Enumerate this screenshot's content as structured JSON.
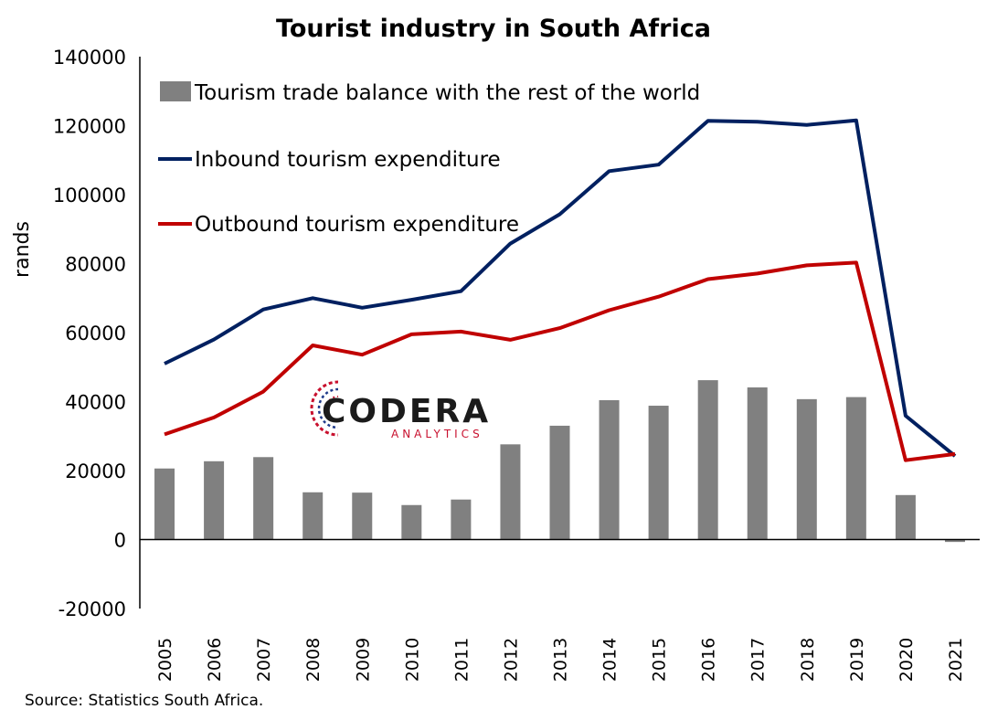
{
  "chart_data": {
    "type": "bar",
    "title": "Tourist industry in South Africa",
    "ylabel": "rands",
    "xlabel": "",
    "ylim": [
      -20000,
      140000
    ],
    "yticks": [
      -20000,
      0,
      20000,
      40000,
      60000,
      80000,
      100000,
      120000,
      140000
    ],
    "categories": [
      "2005",
      "2006",
      "2007",
      "2008",
      "2009",
      "2010",
      "2011",
      "2012",
      "2013",
      "2014",
      "2015",
      "2016",
      "2017",
      "2018",
      "2019",
      "2020",
      "2021"
    ],
    "series": [
      {
        "name": "Tourism trade balance with the rest of the world",
        "kind": "bar",
        "color": "#808080",
        "values": [
          20600,
          22700,
          23900,
          13700,
          13600,
          10000,
          11600,
          27600,
          33000,
          40400,
          38800,
          46200,
          44100,
          40700,
          41300,
          12900,
          -700
        ]
      },
      {
        "name": "Inbound tourism expenditure",
        "kind": "line",
        "color": "#002060",
        "values": [
          51000,
          58000,
          66700,
          70000,
          67200,
          69500,
          72000,
          85800,
          94300,
          106800,
          108700,
          121400,
          121100,
          120200,
          121500,
          35900,
          24200
        ]
      },
      {
        "name": "Outbound tourism expenditure",
        "kind": "line",
        "color": "#c00000",
        "values": [
          30500,
          35400,
          42900,
          56300,
          53600,
          59500,
          60300,
          57900,
          61300,
          66500,
          70400,
          75500,
          77100,
          79500,
          80300,
          23000,
          24800
        ]
      }
    ],
    "legend_position": "top-left",
    "grid": false,
    "source": "Source: Statistics South Africa."
  },
  "watermark": {
    "main": "CODERA",
    "sub": "ANALYTICS"
  }
}
